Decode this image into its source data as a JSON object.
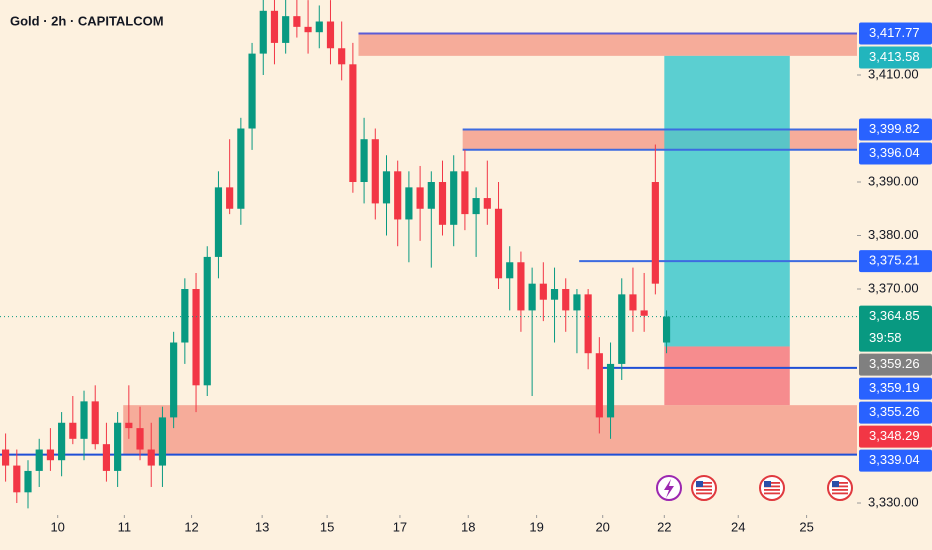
{
  "chart_data": {
    "type": "candlestick",
    "title": "Gold · 2h · CAPITALCOM",
    "up_color": "#089981",
    "down_color": "#f23645",
    "x": [
      0,
      1,
      2,
      3,
      4,
      5,
      6,
      7,
      8,
      9,
      10,
      11,
      12,
      13,
      14,
      15,
      16,
      17,
      18,
      19,
      20,
      21,
      22,
      23,
      24,
      25,
      26,
      27,
      28,
      29,
      30,
      31,
      32,
      33,
      34,
      35,
      36,
      37,
      38,
      39,
      40,
      41,
      42,
      43,
      44,
      45,
      46,
      47,
      48,
      49,
      50,
      51,
      52,
      53,
      54,
      55,
      56,
      57,
      58,
      59
    ],
    "open": [
      3340,
      3337,
      3332,
      3336,
      3340,
      3338,
      3345,
      3342,
      3349,
      3341,
      3336,
      3345,
      3344,
      3340,
      3337,
      3346,
      3360,
      3370,
      3352,
      3376,
      3389,
      3385,
      3400,
      3414,
      3422,
      3416,
      3421,
      3419,
      3418,
      3420,
      3415,
      3412,
      3390,
      3398,
      3386,
      3392,
      3383,
      3389,
      3385,
      3390,
      3382,
      3392,
      3384,
      3387,
      3385,
      3372,
      3375,
      3366,
      3371,
      3368,
      3370,
      3366,
      3369,
      3358,
      3346,
      3356,
      3369,
      3366,
      3390,
      3360
    ],
    "high": [
      3343,
      3340,
      3338,
      3342,
      3344,
      3347,
      3350,
      3351,
      3352,
      3345,
      3347,
      3352,
      3348,
      3345,
      3348,
      3362,
      3372,
      3373,
      3378,
      3392,
      3398,
      3402,
      3416,
      3425,
      3425,
      3425,
      3425,
      3424,
      3423,
      3424,
      3420,
      3416,
      3402,
      3400,
      3395,
      3394,
      3392,
      3393,
      3392,
      3394,
      3395,
      3396,
      3389,
      3394,
      3390,
      3378,
      3377,
      3374,
      3375,
      3374,
      3372,
      3370,
      3370,
      3361,
      3360,
      3372,
      3374,
      3373,
      3397,
      3366
    ],
    "low": [
      3334,
      3330,
      3329,
      3333,
      3336,
      3335,
      3341,
      3338,
      3340,
      3334,
      3333,
      3342,
      3338,
      3333,
      3333,
      3344,
      3356,
      3347,
      3350,
      3372,
      3384,
      3382,
      3396,
      3410,
      3412,
      3414,
      3417,
      3414,
      3415,
      3412,
      3409,
      3388,
      3386,
      3383,
      3380,
      3378,
      3375,
      3379,
      3374,
      3380,
      3378,
      3381,
      3376,
      3382,
      3370,
      3366,
      3362,
      3350,
      3364,
      3360,
      3362,
      3358,
      3355,
      3343,
      3342,
      3353,
      3362,
      3362,
      3369,
      3358
    ],
    "close": [
      3337,
      3332,
      3336,
      3340,
      3338,
      3345,
      3342,
      3349,
      3341,
      3336,
      3345,
      3344,
      3340,
      3337,
      3346,
      3360,
      3370,
      3352,
      3376,
      3389,
      3385,
      3400,
      3414,
      3422,
      3416,
      3421,
      3419,
      3418,
      3420,
      3415,
      3412,
      3390,
      3398,
      3386,
      3392,
      3383,
      3389,
      3385,
      3390,
      3382,
      3392,
      3384,
      3387,
      3385,
      3372,
      3375,
      3366,
      3371,
      3368,
      3370,
      3366,
      3369,
      3358,
      3346,
      3356,
      3369,
      3366,
      3365,
      3371,
      3364.85
    ],
    "xlim": [
      -0.5,
      76
    ],
    "xticks": [
      {
        "value": 4.65,
        "label": "10"
      },
      {
        "value": 10.6,
        "label": "11"
      },
      {
        "value": 16.6,
        "label": "12"
      },
      {
        "value": 22.9,
        "label": "13"
      },
      {
        "value": 28.7,
        "label": "15"
      },
      {
        "value": 35.2,
        "label": "17"
      },
      {
        "value": 41.3,
        "label": "18"
      },
      {
        "value": 47.4,
        "label": "19"
      },
      {
        "value": 53.3,
        "label": "20"
      },
      {
        "value": 58.8,
        "label": "22"
      },
      {
        "value": 65.4,
        "label": "24"
      },
      {
        "value": 71.5,
        "label": "25"
      }
    ],
    "ylim": [
      3327.76,
      3424.02
    ],
    "yticks": [
      {
        "value": 3410,
        "label": "3,410.00"
      },
      {
        "value": 3390,
        "label": "3,390.00"
      },
      {
        "value": 3380,
        "label": "3,380.00"
      },
      {
        "value": 3370,
        "label": "3,370.00"
      },
      {
        "value": 3330,
        "label": "3,330.00"
      }
    ],
    "zones": [
      {
        "low": 3413.58,
        "high": 3417.77,
        "x_start": 31.5,
        "x_end": 76,
        "color": "#f5a08e"
      },
      {
        "low": 3396.04,
        "high": 3399.82,
        "x_start": 40.8,
        "x_end": 76,
        "color": "#f5a08e"
      },
      {
        "low": 3339.04,
        "high": 3348.29,
        "x_start": 10.5,
        "x_end": 76,
        "color": "#f5a08e"
      },
      {
        "low": 3359.26,
        "high": 3413.58,
        "x_start": 58.8,
        "x_end": 70,
        "color": "#3ec9cf"
      },
      {
        "low": 3348.29,
        "high": 3359.26,
        "x_start": 58.8,
        "x_end": 70,
        "color": "#f47a80"
      }
    ],
    "lines": [
      {
        "value": 3417.77,
        "x_start": 31.5,
        "color": "#5b5bd6"
      },
      {
        "value": 3399.82,
        "x_start": 40.8,
        "color": "#3d6be0"
      },
      {
        "value": 3396.04,
        "x_start": 40.8,
        "color": "#3d6be0"
      },
      {
        "value": 3375.21,
        "x_start": 51.2,
        "color": "#3d6be0"
      },
      {
        "value": 3355.26,
        "x_start": 52.8,
        "color": "#1f4fd6"
      },
      {
        "value": 3339.04,
        "x_start": -0.5,
        "color": "#1f4fd6"
      }
    ],
    "price_labels": [
      {
        "value": 3417.77,
        "label": "3,417.77",
        "color": "#2962ff"
      },
      {
        "value": 3413.58,
        "label": "3,413.58",
        "color": "#22b5bd"
      },
      {
        "value": 3399.82,
        "label": "3,399.82",
        "color": "#2962ff"
      },
      {
        "value": 3396.04,
        "label": "3,396.04",
        "color": "#2962ff"
      },
      {
        "value": 3375.21,
        "label": "3,375.21",
        "color": "#2962ff"
      },
      {
        "value": 3364.85,
        "label": "3,364.85",
        "sub": "39:58",
        "color": "#089981"
      },
      {
        "value": 3359.26,
        "label": "3,359.26",
        "color": "#808080"
      },
      {
        "value": 3359.19,
        "label": "3,359.19",
        "color": "#2962ff"
      },
      {
        "value": 3355.26,
        "label": "3,355.26",
        "color": "#2962ff"
      },
      {
        "value": 3348.29,
        "label": "3,348.29",
        "color": "#f23645"
      },
      {
        "value": 3339.04,
        "label": "3,339.04",
        "color": "#2962ff"
      }
    ]
  }
}
